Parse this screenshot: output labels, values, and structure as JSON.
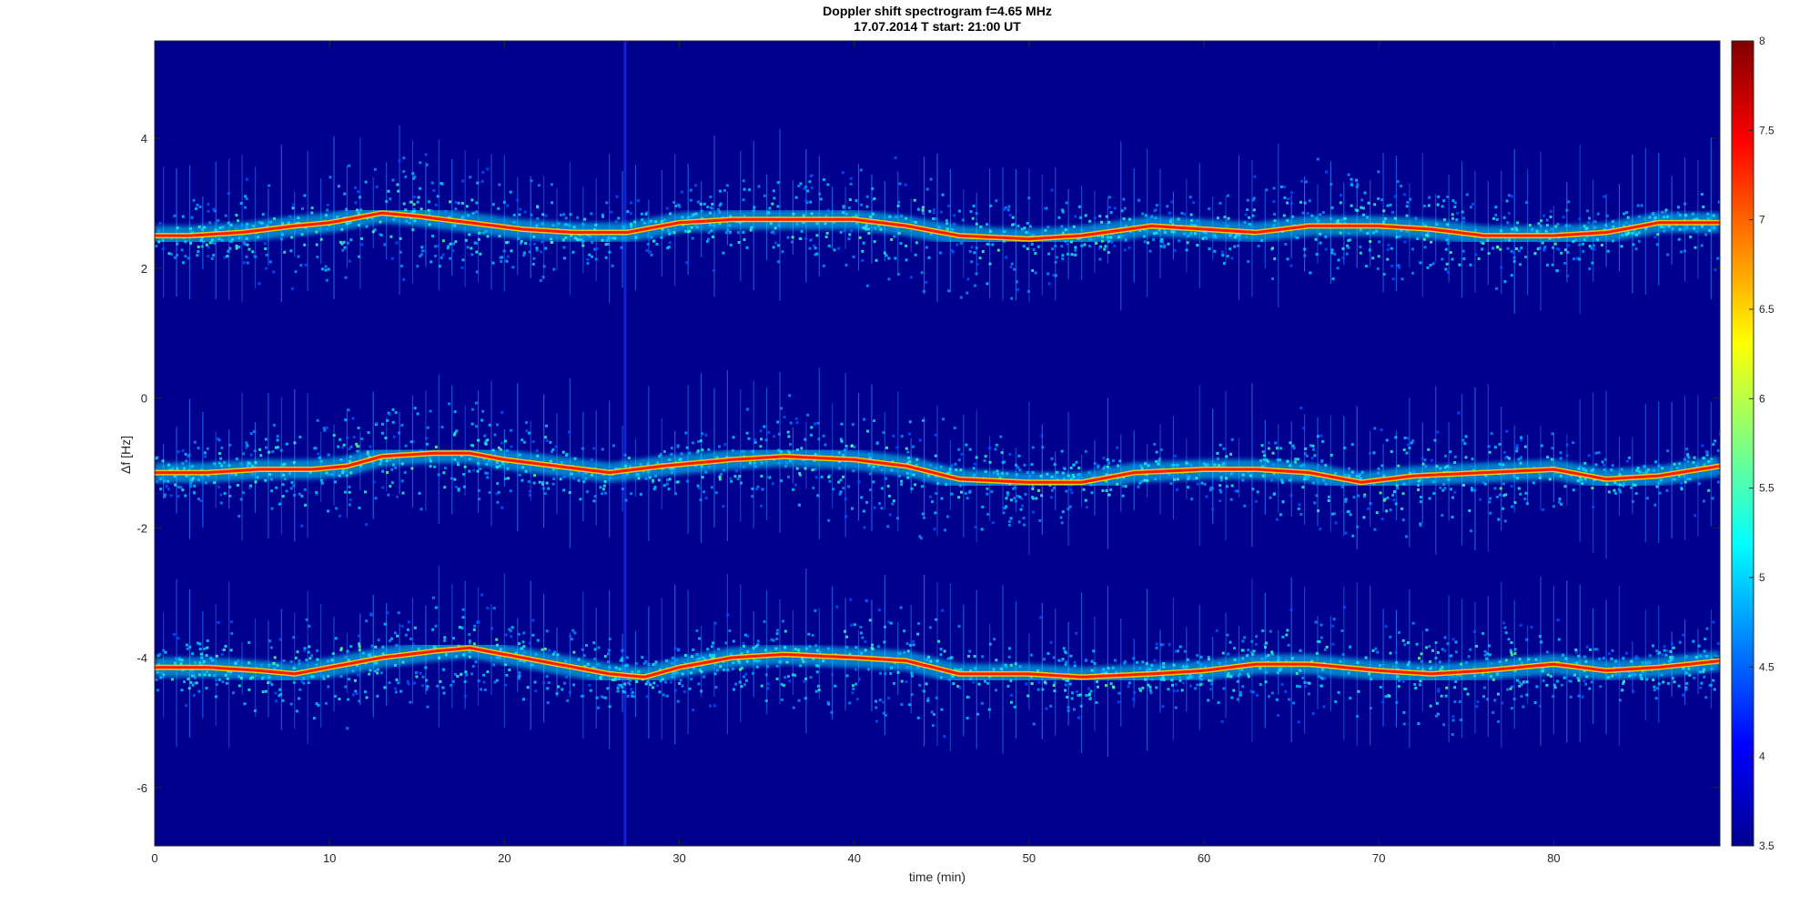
{
  "chart_data": {
    "type": "heatmap",
    "title": "Doppler shift spectrogram f=4.65 MHz",
    "subtitle": "17.07.2014   T start: 21:00 UT",
    "xlabel": "time (min)",
    "ylabel": "Δf [Hz]",
    "xlim": [
      0,
      89.5
    ],
    "ylim": [
      -6.9,
      5.5
    ],
    "xticks": [
      0,
      10,
      20,
      30,
      40,
      50,
      60,
      70,
      80
    ],
    "yticks": [
      -6,
      -4,
      -2,
      0,
      2,
      4
    ],
    "colormap": "jet",
    "clim": [
      3.5,
      8
    ],
    "colorbar_ticks": [
      3.5,
      4,
      4.5,
      5,
      5.5,
      6,
      6.5,
      7,
      7.5,
      8
    ],
    "background_color": "#00008f",
    "series": [
      {
        "x": [
          0,
          2,
          5,
          8,
          10,
          13,
          15,
          18,
          21,
          24,
          27,
          30,
          33,
          36,
          40,
          43,
          46,
          50,
          53,
          57,
          60,
          63,
          66,
          70,
          73,
          76,
          80,
          83,
          86,
          89.5
        ],
        "y": [
          2.5,
          2.5,
          2.55,
          2.65,
          2.7,
          2.85,
          2.8,
          2.7,
          2.6,
          2.55,
          2.55,
          2.7,
          2.75,
          2.75,
          2.75,
          2.65,
          2.5,
          2.45,
          2.5,
          2.65,
          2.6,
          2.55,
          2.65,
          2.65,
          2.6,
          2.5,
          2.5,
          2.55,
          2.7,
          2.7
        ]
      },
      {
        "x": [
          0,
          3,
          6,
          9,
          11,
          13,
          16,
          18,
          20,
          23,
          26,
          29,
          33,
          36,
          40,
          43,
          46,
          50,
          53,
          56,
          60,
          63,
          66,
          69,
          72,
          76,
          80,
          83,
          86,
          89.5
        ],
        "y": [
          -1.15,
          -1.15,
          -1.1,
          -1.1,
          -1.05,
          -0.9,
          -0.85,
          -0.85,
          -0.95,
          -1.05,
          -1.15,
          -1.05,
          -0.95,
          -0.9,
          -0.95,
          -1.05,
          -1.25,
          -1.3,
          -1.3,
          -1.15,
          -1.1,
          -1.1,
          -1.15,
          -1.3,
          -1.2,
          -1.15,
          -1.1,
          -1.25,
          -1.2,
          -1.05
        ]
      },
      {
        "x": [
          0,
          3,
          6,
          8,
          10,
          13,
          16,
          18,
          20,
          23,
          26,
          28,
          30,
          33,
          36,
          40,
          43,
          46,
          50,
          53,
          57,
          60,
          63,
          66,
          70,
          73,
          76,
          80,
          83,
          86,
          89.5
        ],
        "y": [
          -4.15,
          -4.15,
          -4.2,
          -4.25,
          -4.15,
          -4.0,
          -3.9,
          -3.85,
          -3.95,
          -4.1,
          -4.25,
          -4.3,
          -4.15,
          -4.0,
          -3.95,
          -4.0,
          -4.05,
          -4.25,
          -4.25,
          -4.3,
          -4.25,
          -4.2,
          -4.1,
          -4.1,
          -4.2,
          -4.25,
          -4.2,
          -4.1,
          -4.2,
          -4.15,
          -4.05
        ]
      }
    ]
  }
}
